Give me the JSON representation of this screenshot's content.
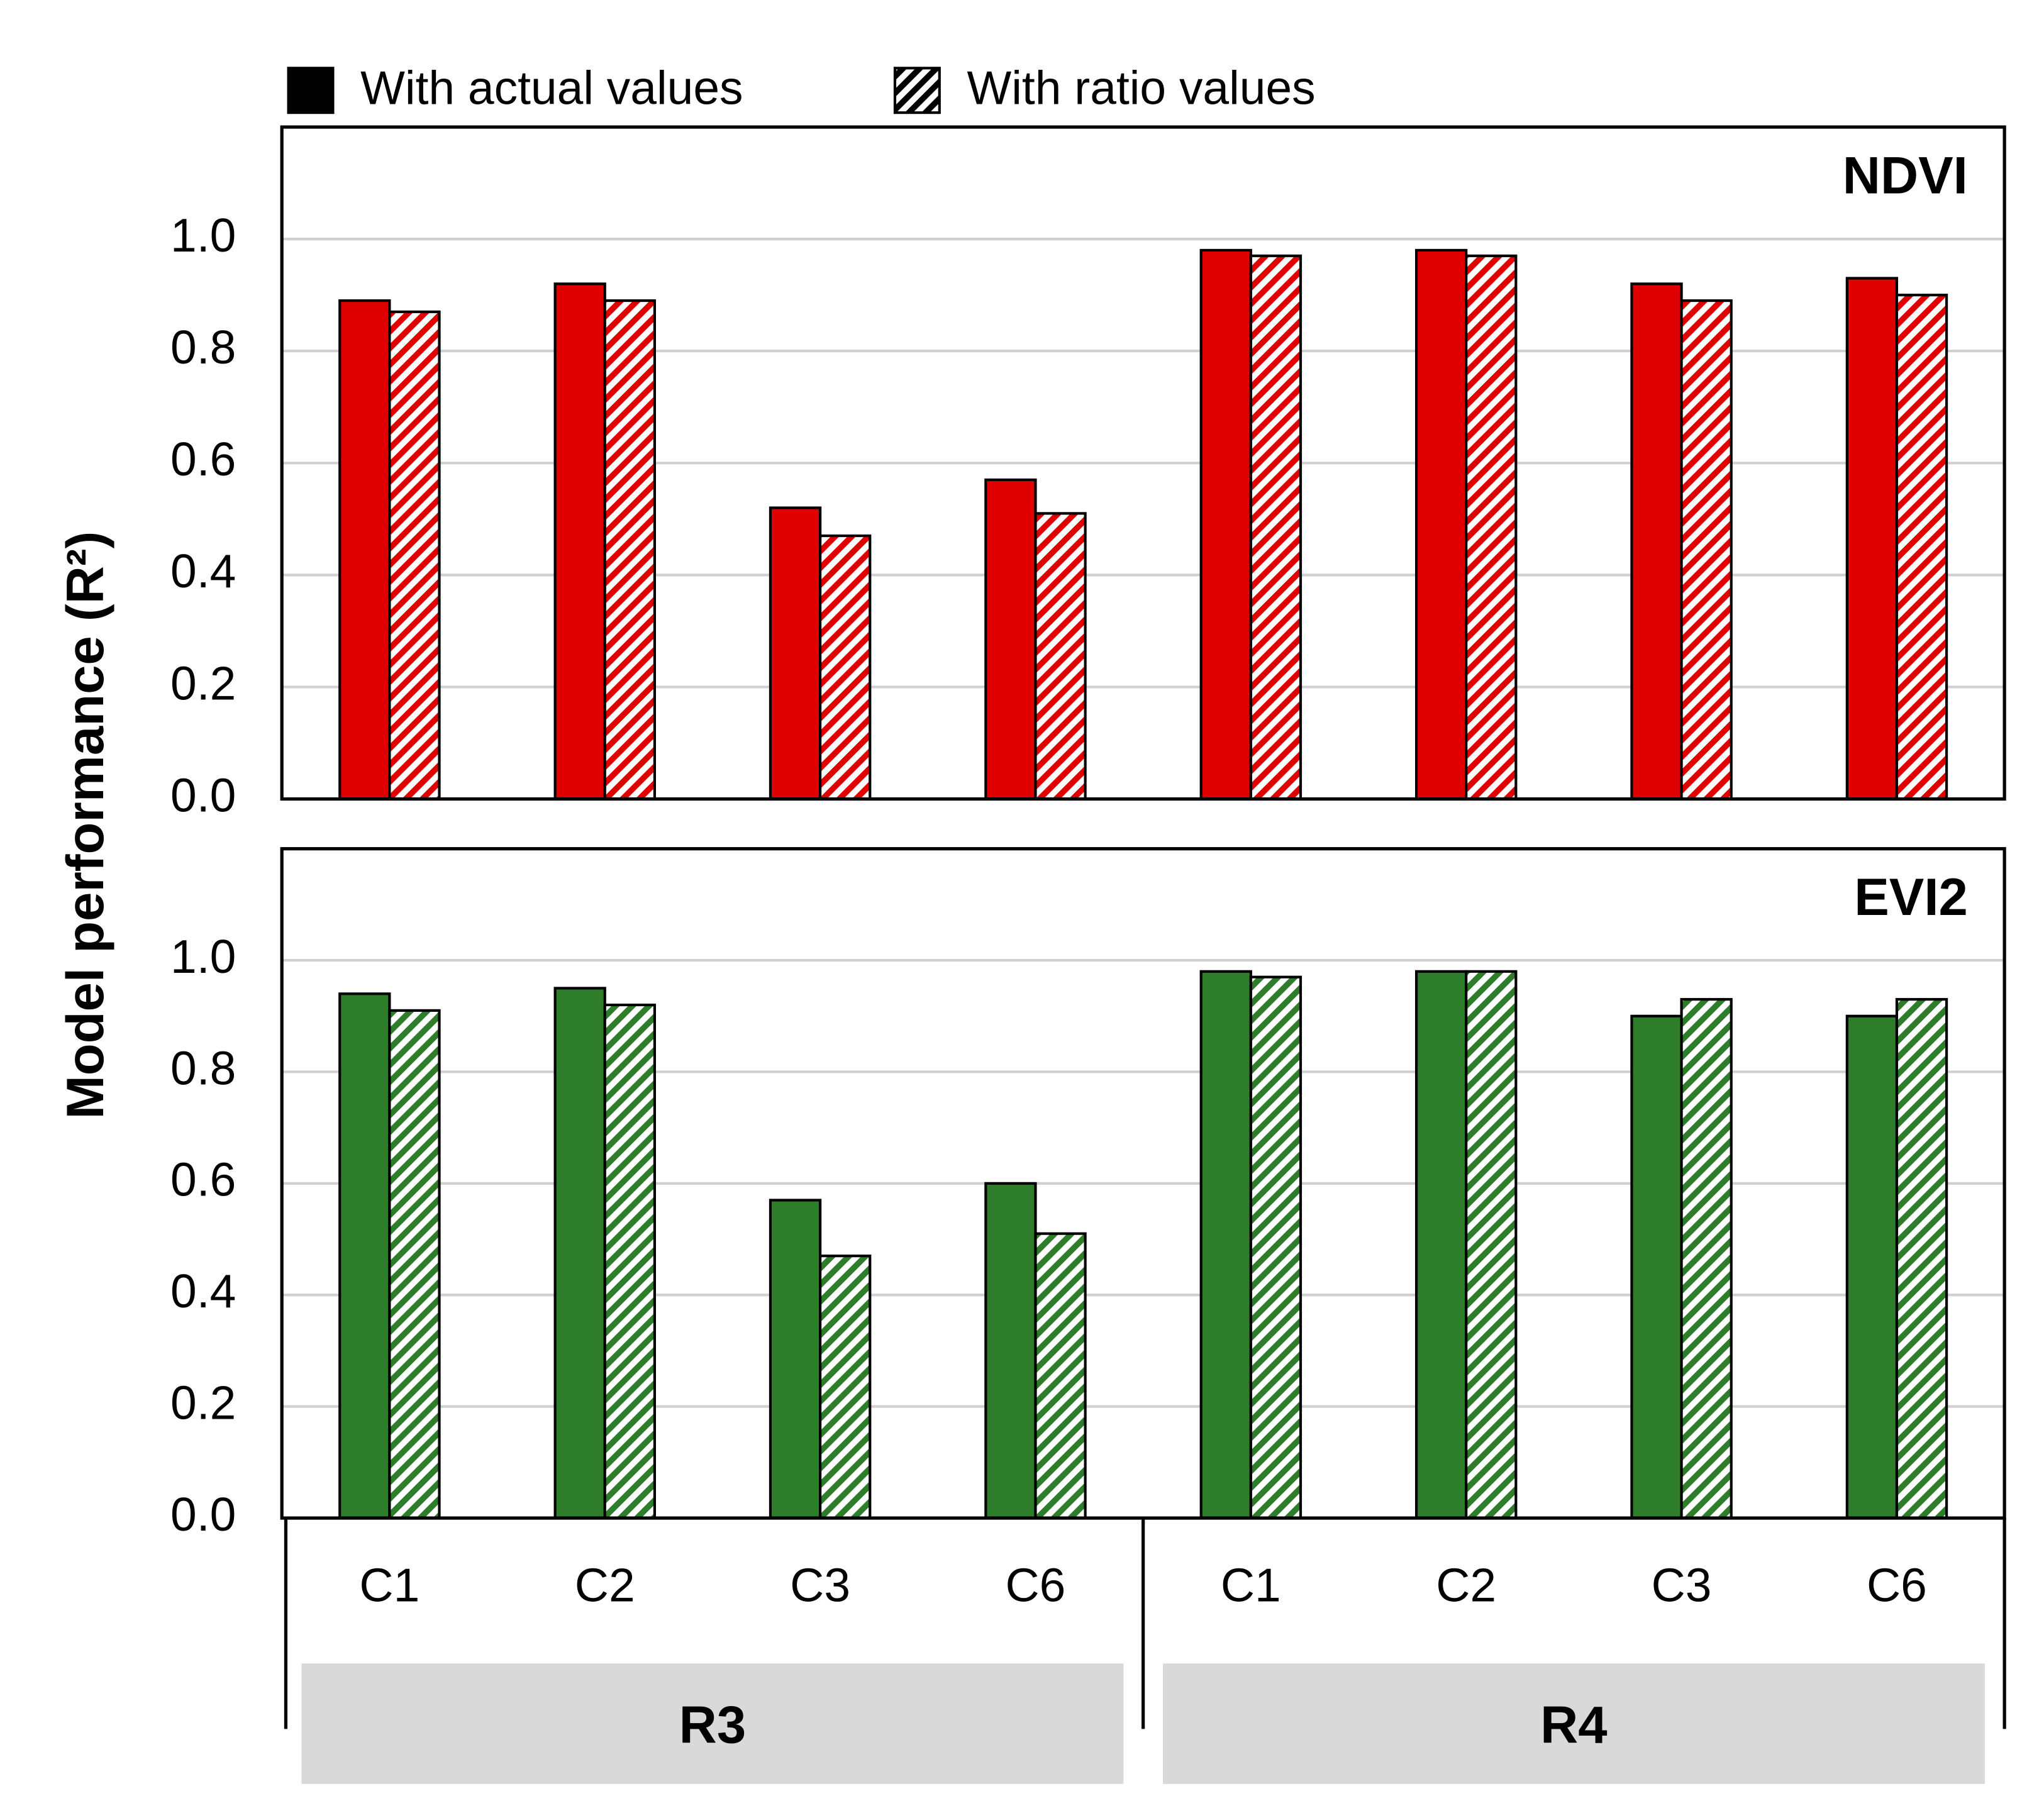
{
  "chart_data": {
    "type": "bar",
    "y_label": "Model performance (R²)",
    "series": [
      {
        "name": "With actual values",
        "pattern": "solid"
      },
      {
        "name": "With ratio values",
        "pattern": "hatch"
      }
    ],
    "categories": [
      "C1",
      "C2",
      "C3",
      "C6",
      "C1",
      "C2",
      "C3",
      "C6"
    ],
    "groups": [
      "R3",
      "R4"
    ],
    "ylim": [
      0,
      1.2
    ],
    "yticks": [
      {
        "value": 0,
        "label": "0.0"
      },
      {
        "value": 0.2,
        "label": "0.2"
      },
      {
        "value": 0.4,
        "label": "0.4"
      },
      {
        "value": 0.6,
        "label": "0.6"
      },
      {
        "value": 0.8,
        "label": "0.8"
      },
      {
        "value": 1,
        "label": "1.0"
      }
    ],
    "grid": true,
    "panels": [
      {
        "title": "NDVI",
        "color": "#e00000",
        "series": [
          {
            "values": [
              0.89,
              0.92,
              0.52,
              0.57,
              0.98,
              0.98,
              0.92,
              0.93
            ]
          },
          {
            "values": [
              0.87,
              0.89,
              0.47,
              0.51,
              0.97,
              0.97,
              0.89,
              0.9
            ]
          }
        ]
      },
      {
        "title": "EVI2",
        "color": "#2e7d2a",
        "series": [
          {
            "values": [
              0.94,
              0.95,
              0.57,
              0.6,
              0.98,
              0.98,
              0.9,
              0.9
            ]
          },
          {
            "values": [
              0.91,
              0.92,
              0.47,
              0.51,
              0.97,
              0.98,
              0.93,
              0.93
            ]
          }
        ]
      }
    ]
  }
}
